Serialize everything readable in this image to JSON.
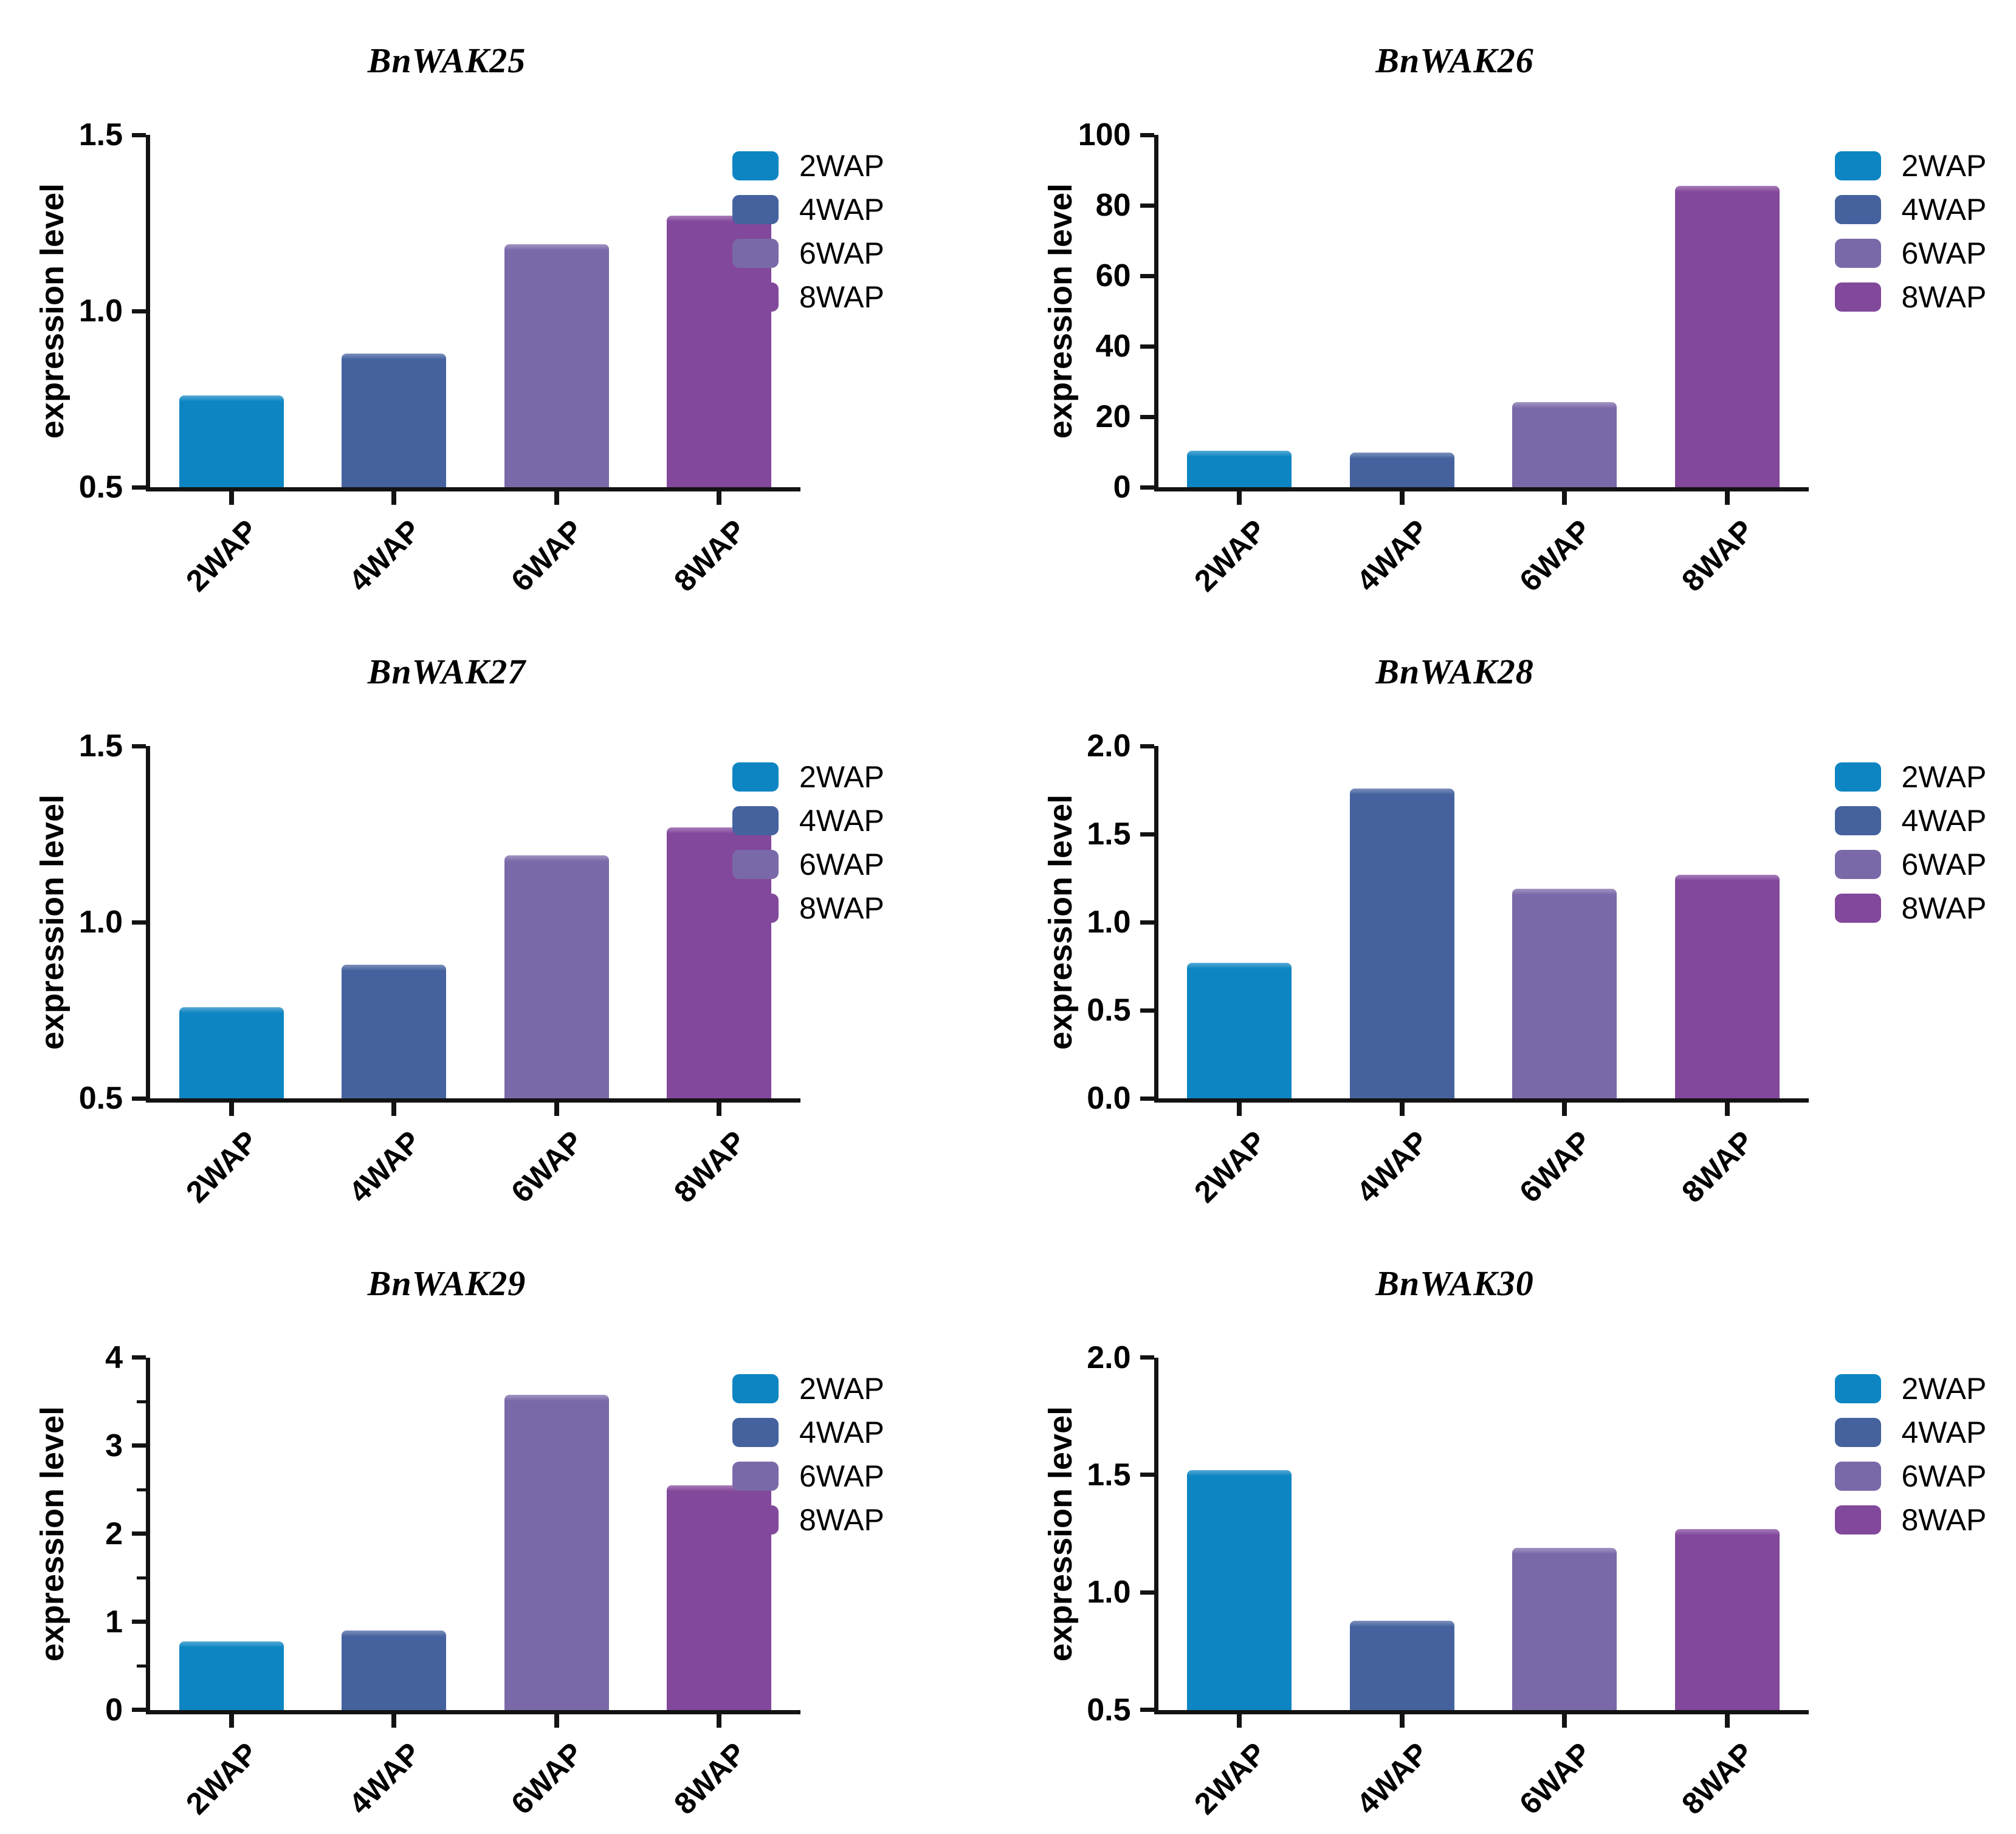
{
  "figure": {
    "background": "#ffffff",
    "axis_color": "#131313",
    "text_color": "#000000",
    "series_colors": {
      "2WAP": "#0d85c2",
      "4WAP": "#45629e",
      "6WAP": "#7a69a8",
      "8WAP": "#82489b"
    }
  },
  "chart_data": [
    {
      "type": "bar",
      "title": "BnWAK25",
      "ylabel": "expression level",
      "categories": [
        "2WAP",
        "4WAP",
        "6WAP",
        "8WAP"
      ],
      "values": [
        0.76,
        0.88,
        1.19,
        1.27
      ],
      "ylim": [
        0.5,
        1.5
      ],
      "yticks": [
        0.5,
        1.0,
        1.5
      ],
      "ytick_labels": [
        "0.5",
        "1.0",
        "1.5"
      ],
      "yticks_minor": [],
      "grid": false,
      "legend": [
        "2WAP",
        "4WAP",
        "6WAP",
        "8WAP"
      ],
      "legend_position": "right"
    },
    {
      "type": "bar",
      "title": "BnWAK26",
      "ylabel": "expression level",
      "categories": [
        "2WAP",
        "4WAP",
        "6WAP",
        "8WAP"
      ],
      "values": [
        10.3,
        9.9,
        24.2,
        85.5
      ],
      "ylim": [
        0,
        100
      ],
      "yticks": [
        0,
        20,
        40,
        60,
        80,
        100
      ],
      "ytick_labels": [
        "0",
        "20",
        "40",
        "60",
        "80",
        "100"
      ],
      "yticks_minor": [],
      "grid": false,
      "legend": [
        "2WAP",
        "4WAP",
        "6WAP",
        "8WAP"
      ],
      "legend_position": "right"
    },
    {
      "type": "bar",
      "title": "BnWAK27",
      "ylabel": "expression level",
      "categories": [
        "2WAP",
        "4WAP",
        "6WAP",
        "8WAP"
      ],
      "values": [
        0.76,
        0.88,
        1.19,
        1.27
      ],
      "ylim": [
        0.5,
        1.5
      ],
      "yticks": [
        0.5,
        1.0,
        1.5
      ],
      "ytick_labels": [
        "0.5",
        "1.0",
        "1.5"
      ],
      "yticks_minor": [],
      "grid": false,
      "legend": [
        "2WAP",
        "4WAP",
        "6WAP",
        "8WAP"
      ],
      "legend_position": "right"
    },
    {
      "type": "bar",
      "title": "BnWAK28",
      "ylabel": "expression level",
      "categories": [
        "2WAP",
        "4WAP",
        "6WAP",
        "8WAP"
      ],
      "values": [
        0.77,
        1.76,
        1.19,
        1.27
      ],
      "ylim": [
        0.0,
        2.0
      ],
      "yticks": [
        0.0,
        0.5,
        1.0,
        1.5,
        2.0
      ],
      "ytick_labels": [
        "0.0",
        "0.5",
        "1.0",
        "1.5",
        "2.0"
      ],
      "yticks_minor": [],
      "grid": false,
      "legend": [
        "2WAP",
        "4WAP",
        "6WAP",
        "8WAP"
      ],
      "legend_position": "right"
    },
    {
      "type": "bar",
      "title": "BnWAK29",
      "ylabel": "expression level",
      "categories": [
        "2WAP",
        "4WAP",
        "6WAP",
        "8WAP"
      ],
      "values": [
        0.78,
        0.9,
        3.58,
        2.55
      ],
      "ylim": [
        0,
        4
      ],
      "yticks": [
        0,
        1,
        2,
        3,
        4
      ],
      "ytick_labels": [
        "0",
        "1",
        "2",
        "3",
        "4"
      ],
      "yticks_minor": [
        0.5,
        1.5,
        2.5,
        3.5
      ],
      "grid": false,
      "legend": [
        "2WAP",
        "4WAP",
        "6WAP",
        "8WAP"
      ],
      "legend_position": "right"
    },
    {
      "type": "bar",
      "title": "BnWAK30",
      "ylabel": "expression level",
      "categories": [
        "2WAP",
        "4WAP",
        "6WAP",
        "8WAP"
      ],
      "values": [
        1.52,
        0.88,
        1.19,
        1.27
      ],
      "ylim": [
        0.5,
        2.0
      ],
      "yticks": [
        0.5,
        1.0,
        1.5,
        2.0
      ],
      "ytick_labels": [
        "0.5",
        "1.0",
        "1.5",
        "2.0"
      ],
      "yticks_minor": [],
      "grid": false,
      "legend": [
        "2WAP",
        "4WAP",
        "6WAP",
        "8WAP"
      ],
      "legend_position": "right"
    }
  ]
}
